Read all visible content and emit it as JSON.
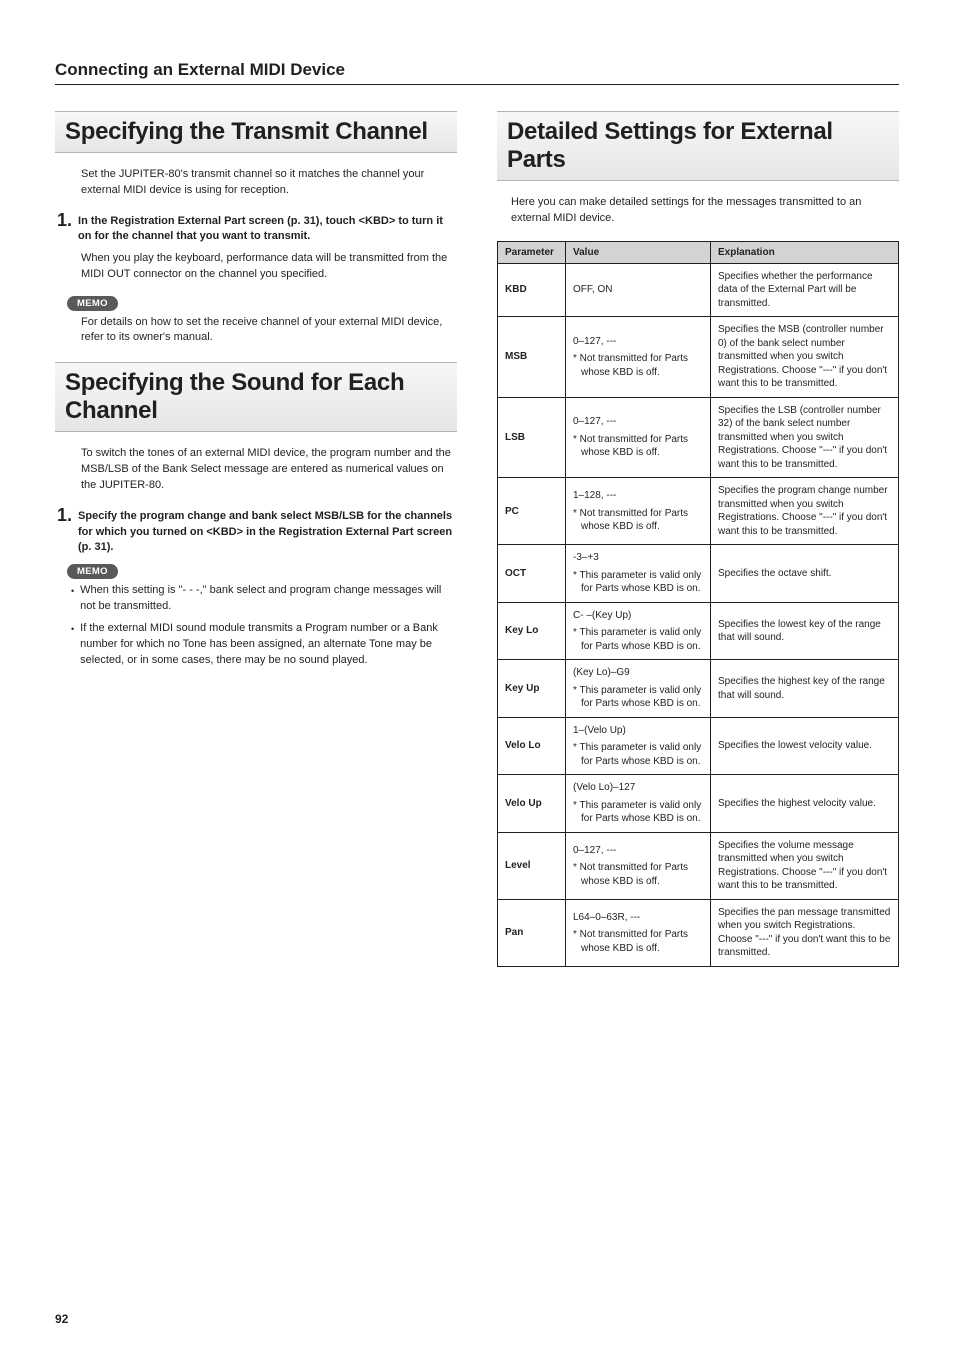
{
  "page": {
    "section_header": "Connecting an External MIDI Device",
    "page_number": "92"
  },
  "left": {
    "h1_transmit": "Specifying the Transmit Channel",
    "transmit_intro": "Set the JUPITER-80's transmit channel so it matches the channel your external MIDI device is using for reception.",
    "step1_num": "1.",
    "step1_text": "In the Registration External Part screen (p. 31), touch <KBD> to turn it on for the channel that you want to transmit.",
    "step1_sub": "When you play the keyboard, performance data will be transmitted from the MIDI OUT connector on the channel you specified.",
    "memo_label": "MEMO",
    "memo1_text": "For details on how to set the receive channel of your external MIDI device, refer to its owner's manual.",
    "h1_sound": "Specifying the Sound for Each Channel",
    "sound_intro": "To switch the tones of an external MIDI device, the program number and the MSB/LSB of the Bank Select message are entered as numerical values on the JUPITER-80.",
    "step2_num": "1.",
    "step2_text": "Specify the program change and bank select MSB/LSB for the channels for which you turned on <KBD> in the Registration External Part screen (p. 31).",
    "bullet1": "When this setting is \"- - -,\" bank select and program change messages will not be transmitted.",
    "bullet2": "If the external MIDI sound module transmits a Program number or a Bank number for which no Tone has been assigned, an alternate Tone may be selected, or in some cases, there may be no sound played."
  },
  "right": {
    "h1_detailed": "Detailed Settings for External Parts",
    "detailed_intro": "Here you can make detailed settings for the messages transmitted to an external MIDI device.",
    "table": {
      "headers": {
        "param": "Parameter",
        "value": "Value",
        "explanation": "Explanation"
      },
      "rows": [
        {
          "param": "KBD",
          "value": "OFF, ON",
          "note": "",
          "explanation": "Specifies whether the performance data of the External Part will be transmitted."
        },
        {
          "param": "MSB",
          "value": "0–127, ---",
          "note": "* Not transmitted for Parts whose KBD is off.",
          "explanation": "Specifies the MSB (controller number 0) of the bank select number transmitted when you switch Registrations.\nChoose \"---\" if you don't want this to be transmitted."
        },
        {
          "param": "LSB",
          "value": "0–127, ---",
          "note": "* Not transmitted for Parts whose KBD is off.",
          "explanation": "Specifies the LSB (controller number 32) of the bank select number transmitted when you switch Registrations.\nChoose \"---\" if you don't want this to be transmitted."
        },
        {
          "param": "PC",
          "value": "1–128, ---",
          "note": "* Not transmitted for Parts whose KBD is off.",
          "explanation": "Specifies the program change number transmitted when you switch Registrations.\nChoose \"---\" if you don't want this to be transmitted."
        },
        {
          "param": "OCT",
          "value": "-3–+3",
          "note": "* This parameter is valid only for Parts whose KBD is on.",
          "explanation": "Specifies the octave shift."
        },
        {
          "param": "Key Lo",
          "value": "C- –(Key Up)",
          "note": "* This parameter is valid only for Parts whose KBD is on.",
          "explanation": "Specifies the lowest key of the range that will sound."
        },
        {
          "param": "Key Up",
          "value": "(Key Lo)–G9",
          "note": "* This parameter is valid only for Parts whose KBD is on.",
          "explanation": "Specifies the highest key of the range that will sound."
        },
        {
          "param": "Velo Lo",
          "value": "1–(Velo Up)",
          "note": "* This parameter is valid only for Parts whose KBD is on.",
          "explanation": "Specifies the lowest velocity value."
        },
        {
          "param": "Velo Up",
          "value": "(Velo Lo)–127",
          "note": "* This parameter is valid only for Parts whose KBD is on.",
          "explanation": "Specifies the highest velocity value."
        },
        {
          "param": "Level",
          "value": "0–127, ---",
          "note": "* Not transmitted for Parts whose KBD is off.",
          "explanation": "Specifies the volume message transmitted when you switch Registrations.\nChoose \"---\" if you don't want this to be transmitted."
        },
        {
          "param": "Pan",
          "value": "L64–0–63R, ---",
          "note": "* Not transmitted for Parts whose KBD is off.",
          "explanation": "Specifies the pan message transmitted when you switch Registrations.\nChoose \"---\" if you don't want this to be transmitted."
        }
      ]
    }
  }
}
